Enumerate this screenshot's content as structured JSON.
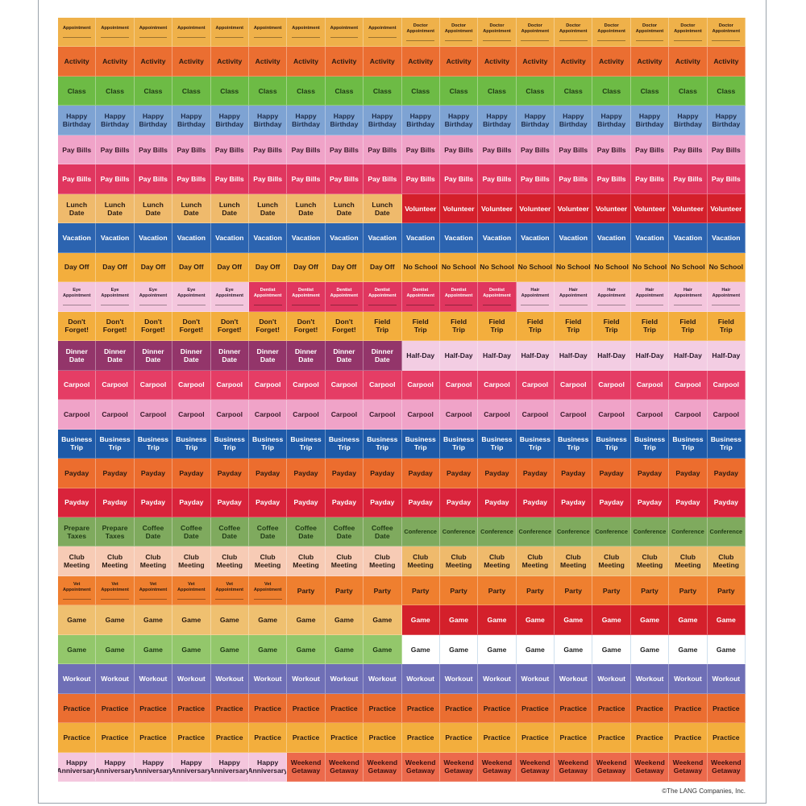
{
  "palette": {
    "orange": {
      "bg": "#efb14a",
      "fg": "#2a1a10"
    },
    "activity": {
      "bg": "#eb6e31",
      "fg": "#2a1a10"
    },
    "green": {
      "bg": "#6dbb45",
      "fg": "#1f3a14"
    },
    "blue_light": {
      "bg": "#7ea3d3",
      "fg": "#1d2c4a"
    },
    "pink": {
      "bg": "#f0a3c8",
      "fg": "#3a1a2a"
    },
    "magenta": {
      "bg": "#e0365f",
      "fg": "#ffffff"
    },
    "tan": {
      "bg": "#efba6c",
      "fg": "#2a1a10"
    },
    "red": {
      "bg": "#d4202b",
      "fg": "#ffffff"
    },
    "blue": {
      "bg": "#2c64b0",
      "fg": "#ffffff"
    },
    "yellow": {
      "bg": "#f3ae3d",
      "fg": "#2a1a10"
    },
    "pale_pink": {
      "bg": "#f4c6dd",
      "fg": "#2a1a2a"
    },
    "plum": {
      "bg": "#93356a",
      "fg": "#ffffff"
    },
    "half": {
      "bg": "#f3cde3",
      "fg": "#2a1a2a"
    },
    "carpool_red": {
      "bg": "#e53d65",
      "fg": "#ffffff"
    },
    "navy": {
      "bg": "#1e5aa8",
      "fg": "#ffffff"
    },
    "payday_orange": {
      "bg": "#ec6d2e",
      "fg": "#2a1a10"
    },
    "payday_red": {
      "bg": "#d9233b",
      "fg": "#ffffff"
    },
    "sage": {
      "bg": "#7faa5e",
      "fg": "#1f3a14"
    },
    "peach": {
      "bg": "#f7cbb5",
      "fg": "#2a1a10"
    },
    "party": {
      "bg": "#ef7f2f",
      "fg": "#2a1a10"
    },
    "game_tan": {
      "bg": "#efc070",
      "fg": "#2a1a10"
    },
    "lime": {
      "bg": "#93c76b",
      "fg": "#1f3a14"
    },
    "white": {
      "bg": "#ffffff",
      "fg": "#222222"
    },
    "purple": {
      "bg": "#6f6fb6",
      "fg": "#ffffff"
    },
    "coral": {
      "bg": "#ec6a4c",
      "fg": "#3a1010"
    }
  },
  "rows": [
    [
      {
        "label": "Appointment",
        "count": 9,
        "style": "orange",
        "small": true
      },
      {
        "label": "Doctor\nAppointment",
        "count": 9,
        "style": "orange",
        "small": true
      }
    ],
    [
      {
        "label": "Activity",
        "count": 18,
        "style": "activity"
      }
    ],
    [
      {
        "label": "Class",
        "count": 18,
        "style": "green"
      }
    ],
    [
      {
        "label": "Happy\nBirthday",
        "count": 18,
        "style": "blue_light"
      }
    ],
    [
      {
        "label": "Pay Bills",
        "count": 18,
        "style": "pink"
      }
    ],
    [
      {
        "label": "Pay Bills",
        "count": 18,
        "style": "magenta"
      }
    ],
    [
      {
        "label": "Lunch\nDate",
        "count": 9,
        "style": "tan"
      },
      {
        "label": "Volunteer",
        "count": 9,
        "style": "red"
      }
    ],
    [
      {
        "label": "Vacation",
        "count": 18,
        "style": "blue"
      }
    ],
    [
      {
        "label": "Day Off",
        "count": 9,
        "style": "yellow"
      },
      {
        "label": "No School",
        "count": 9,
        "style": "yellow"
      }
    ],
    [
      {
        "label": "Eye\nAppointment",
        "count": 5,
        "style": "pale_pink",
        "small": true
      },
      {
        "label": "Dentist\nAppointment",
        "count": 7,
        "style": "magenta",
        "small": true
      },
      {
        "label": "Hair\nAppointment",
        "count": 6,
        "style": "pale_pink",
        "small": true
      }
    ],
    [
      {
        "label": "Don't\nForget!",
        "count": 8,
        "style": "yellow"
      },
      {
        "label": "Field\nTrip",
        "count": 10,
        "style": "yellow"
      }
    ],
    [
      {
        "label": "Dinner\nDate",
        "count": 9,
        "style": "plum"
      },
      {
        "label": "Half-Day",
        "count": 9,
        "style": "half"
      }
    ],
    [
      {
        "label": "Carpool",
        "count": 18,
        "style": "carpool_red"
      }
    ],
    [
      {
        "label": "Carpool",
        "count": 18,
        "style": "pink"
      }
    ],
    [
      {
        "label": "Business\nTrip",
        "count": 18,
        "style": "navy"
      }
    ],
    [
      {
        "label": "Payday",
        "count": 18,
        "style": "payday_orange"
      }
    ],
    [
      {
        "label": "Payday",
        "count": 18,
        "style": "payday_red"
      }
    ],
    [
      {
        "label": "Prepare\nTaxes",
        "count": 2,
        "style": "sage"
      },
      {
        "label": "Coffee\nDate",
        "count": 7,
        "style": "sage"
      },
      {
        "label": "Conference",
        "count": 9,
        "style": "sage",
        "conf": true
      }
    ],
    [
      {
        "label": "Club\nMeeting",
        "count": 9,
        "style": "peach"
      },
      {
        "label": "Club\nMeeting",
        "count": 9,
        "style": "tan"
      }
    ],
    [
      {
        "label": "Vet\nAppointment",
        "count": 6,
        "style": "party",
        "small": true
      },
      {
        "label": "Party",
        "count": 12,
        "style": "party"
      }
    ],
    [
      {
        "label": "Game",
        "count": 9,
        "style": "game_tan"
      },
      {
        "label": "Game",
        "count": 9,
        "style": "red"
      }
    ],
    [
      {
        "label": "Game",
        "count": 9,
        "style": "lime"
      },
      {
        "label": "Game",
        "count": 9,
        "style": "white"
      }
    ],
    [
      {
        "label": "Workout",
        "count": 18,
        "style": "purple"
      }
    ],
    [
      {
        "label": "Practice",
        "count": 18,
        "style": "activity"
      }
    ],
    [
      {
        "label": "Practice",
        "count": 18,
        "style": "yellow"
      }
    ],
    [
      {
        "label": "Happy\nAnniversary",
        "count": 6,
        "style": "pale_pink"
      },
      {
        "label": "Weekend\nGetaway",
        "count": 12,
        "style": "coral"
      }
    ]
  ],
  "copyright": "©The LANG Companies, Inc."
}
